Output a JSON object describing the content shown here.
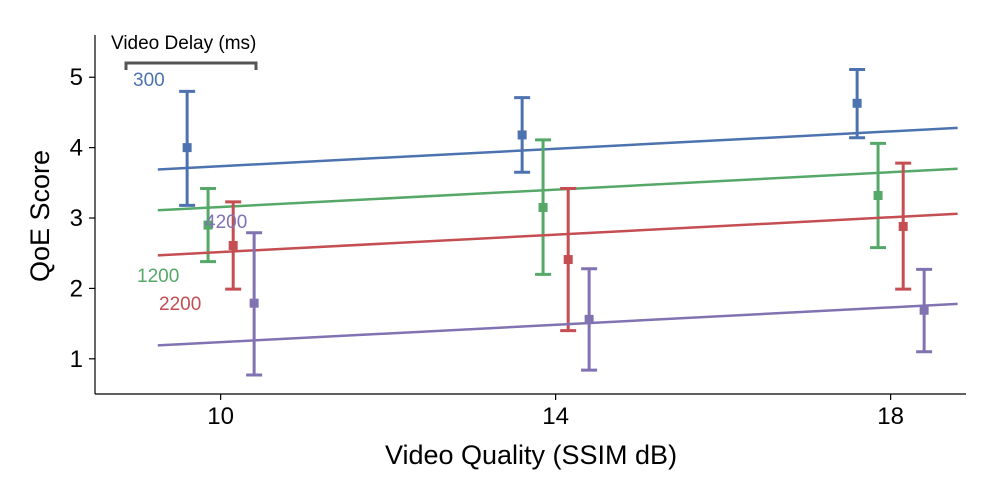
{
  "chart_data": {
    "type": "scatter",
    "xlabel": "Video Quality (SSIM dB)",
    "ylabel": "QoE Score",
    "xlim": [
      8.5,
      18.9
    ],
    "ylim": [
      0.5,
      5.6
    ],
    "xticks": [
      10,
      14,
      18
    ],
    "yticks": [
      1,
      2,
      3,
      4,
      5
    ],
    "legend_title": "Video Delay (ms)",
    "grid": false,
    "series": [
      {
        "name": "300",
        "color": "#4c72b0",
        "points": [
          {
            "x": 9.6,
            "y": 4.0,
            "lo": 3.18,
            "hi": 4.8
          },
          {
            "x": 13.6,
            "y": 4.18,
            "lo": 3.65,
            "hi": 4.71
          },
          {
            "x": 17.6,
            "y": 4.63,
            "lo": 4.14,
            "hi": 5.11
          }
        ],
        "fit": [
          [
            9.25,
            3.69
          ],
          [
            18.8,
            4.28
          ]
        ]
      },
      {
        "name": "1200",
        "color": "#55a868",
        "points": [
          {
            "x": 9.85,
            "y": 2.9,
            "lo": 2.38,
            "hi": 3.42
          },
          {
            "x": 13.85,
            "y": 3.15,
            "lo": 2.2,
            "hi": 4.11
          },
          {
            "x": 17.85,
            "y": 3.32,
            "lo": 2.58,
            "hi": 4.06
          }
        ],
        "fit": [
          [
            9.25,
            3.11
          ],
          [
            18.8,
            3.7
          ]
        ]
      },
      {
        "name": "2200",
        "color": "#c44e52",
        "points": [
          {
            "x": 10.15,
            "y": 2.61,
            "lo": 1.99,
            "hi": 3.23
          },
          {
            "x": 14.15,
            "y": 2.41,
            "lo": 1.4,
            "hi": 3.42
          },
          {
            "x": 18.15,
            "y": 2.88,
            "lo": 1.99,
            "hi": 3.78
          }
        ],
        "fit": [
          [
            9.25,
            2.47
          ],
          [
            18.8,
            3.06
          ]
        ]
      },
      {
        "name": "4200",
        "color": "#8172b2",
        "points": [
          {
            "x": 10.4,
            "y": 1.79,
            "lo": 0.77,
            "hi": 2.79
          },
          {
            "x": 14.4,
            "y": 1.56,
            "lo": 0.84,
            "hi": 2.28
          },
          {
            "x": 18.4,
            "y": 1.69,
            "lo": 1.1,
            "hi": 2.27
          }
        ],
        "fit": [
          [
            9.25,
            1.19
          ],
          [
            18.8,
            1.78
          ]
        ]
      }
    ]
  }
}
